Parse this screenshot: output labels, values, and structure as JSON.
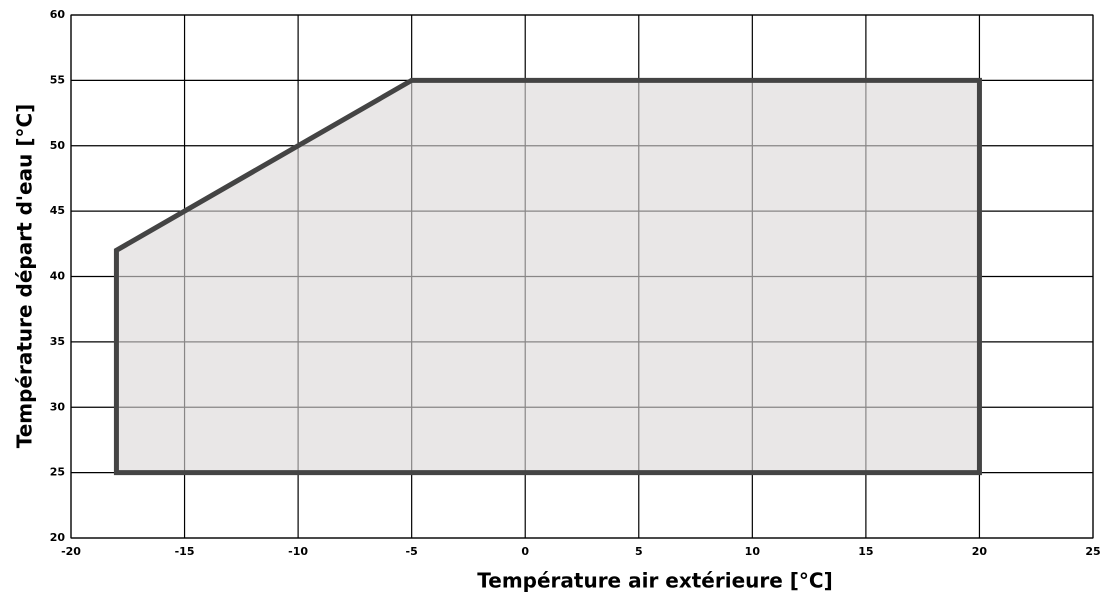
{
  "chart_data": {
    "type": "polygon",
    "x_label": "Température air extérieure [°C]",
    "y_label": "Température départ d'eau [°C]",
    "x": [
      -18,
      -18,
      -5,
      20,
      20
    ],
    "values": [
      25,
      42,
      55,
      55,
      25
    ],
    "color": "#dcd8d8",
    "line_color": "#444444",
    "xlim": [
      -20,
      25
    ],
    "xticks": [
      -20,
      -15,
      -10,
      -5,
      0,
      5,
      10,
      15,
      20,
      25
    ],
    "ylim": [
      20,
      60
    ],
    "yticks": [
      20,
      25,
      30,
      35,
      40,
      45,
      50,
      55,
      60
    ],
    "grid": true
  }
}
